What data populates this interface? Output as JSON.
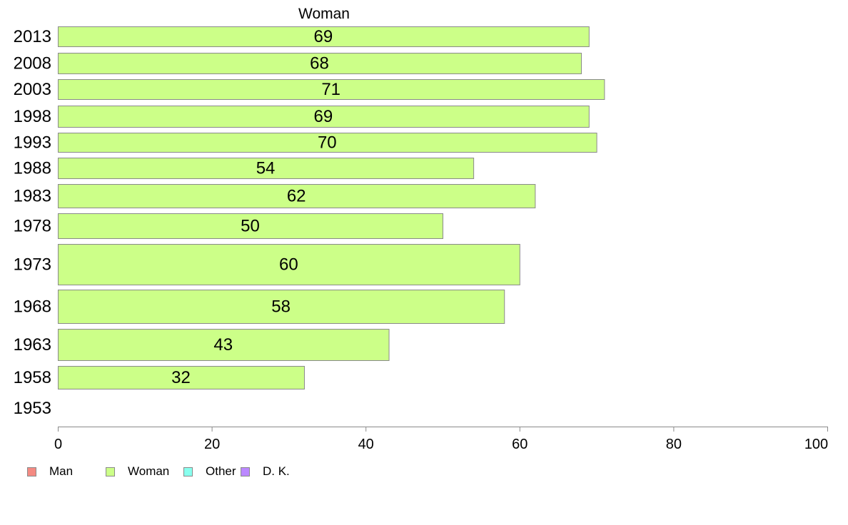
{
  "chart_data": {
    "type": "bar",
    "orientation": "horizontal",
    "title": "Woman",
    "categories": [
      "2013",
      "2008",
      "2003",
      "1998",
      "1993",
      "1988",
      "1983",
      "1978",
      "1973",
      "1968",
      "1963",
      "1958",
      "1953"
    ],
    "series": [
      {
        "name": "Woman",
        "values": [
          69,
          68,
          71,
          69,
          70,
          54,
          62,
          50,
          60,
          58,
          43,
          32,
          null
        ]
      }
    ],
    "xlim": [
      0,
      100
    ],
    "xticks": [
      0,
      20,
      40,
      60,
      80,
      100
    ],
    "grid": false,
    "legend_position": "bottom-left"
  },
  "legend": [
    {
      "label": "Man",
      "color": "#f48a82"
    },
    {
      "label": "Woman",
      "color": "#ccff88"
    },
    {
      "label": "Other",
      "color": "#88ffee"
    },
    {
      "label": "D. K.",
      "color": "#bb88ff"
    }
  ],
  "colors": {
    "bar_fill": "#ccff88",
    "bar_stroke": "#8a8a8a"
  }
}
